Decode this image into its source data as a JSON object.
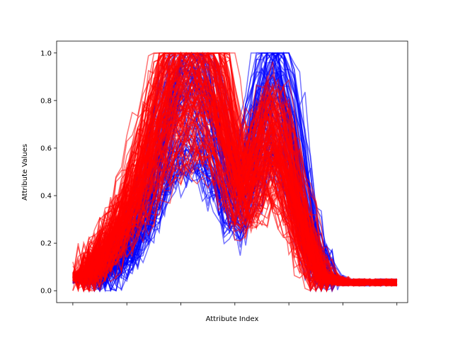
{
  "chart_data": {
    "type": "line",
    "title": "",
    "xlabel": "Attribute Index",
    "ylabel": "Attribute Values",
    "x": {
      "num_points": 61,
      "xlim": [
        -3,
        62
      ],
      "tick_positions": [
        0,
        10,
        20,
        30,
        40,
        50,
        60
      ],
      "tick_labels": []
    },
    "ylim": [
      -0.05,
      1.05
    ],
    "yticks": [
      0.0,
      0.2,
      0.4,
      0.6,
      0.8,
      1.0
    ],
    "ytick_labels": [
      "0.0",
      "0.2",
      "0.4",
      "0.6",
      "0.8",
      "1.0"
    ],
    "grid": false,
    "legend": "none",
    "line_alpha": 0.55,
    "series": [
      {
        "group": "blue",
        "color": "#0000ff",
        "count": 100,
        "values": [
          0.03,
          0.03,
          0.04,
          0.05,
          0.06,
          0.08,
          0.1,
          0.12,
          0.14,
          0.17,
          0.2,
          0.24,
          0.29,
          0.35,
          0.42,
          0.5,
          0.58,
          0.66,
          0.73,
          0.79,
          0.84,
          0.87,
          0.88,
          0.87,
          0.84,
          0.79,
          0.72,
          0.64,
          0.55,
          0.47,
          0.42,
          0.45,
          0.52,
          0.61,
          0.7,
          0.78,
          0.85,
          0.88,
          0.86,
          0.8,
          0.71,
          0.59,
          0.46,
          0.34,
          0.24,
          0.16,
          0.1,
          0.06,
          0.04,
          0.03,
          0.02,
          0.02,
          0.02,
          0.02,
          0.02,
          0.02,
          0.02,
          0.02,
          0.02,
          0.02,
          0.02
        ]
      },
      {
        "group": "red",
        "color": "#ff0000",
        "count": 150,
        "values": [
          0.04,
          0.05,
          0.07,
          0.09,
          0.12,
          0.15,
          0.18,
          0.22,
          0.26,
          0.31,
          0.36,
          0.42,
          0.48,
          0.55,
          0.62,
          0.69,
          0.75,
          0.81,
          0.86,
          0.9,
          0.93,
          0.95,
          0.96,
          0.96,
          0.95,
          0.93,
          0.89,
          0.83,
          0.75,
          0.65,
          0.55,
          0.48,
          0.46,
          0.5,
          0.56,
          0.62,
          0.66,
          0.67,
          0.64,
          0.58,
          0.5,
          0.41,
          0.32,
          0.24,
          0.17,
          0.11,
          0.07,
          0.05,
          0.03,
          0.03,
          0.02,
          0.02,
          0.02,
          0.02,
          0.02,
          0.02,
          0.02,
          0.02,
          0.02,
          0.02,
          0.02
        ]
      }
    ]
  }
}
